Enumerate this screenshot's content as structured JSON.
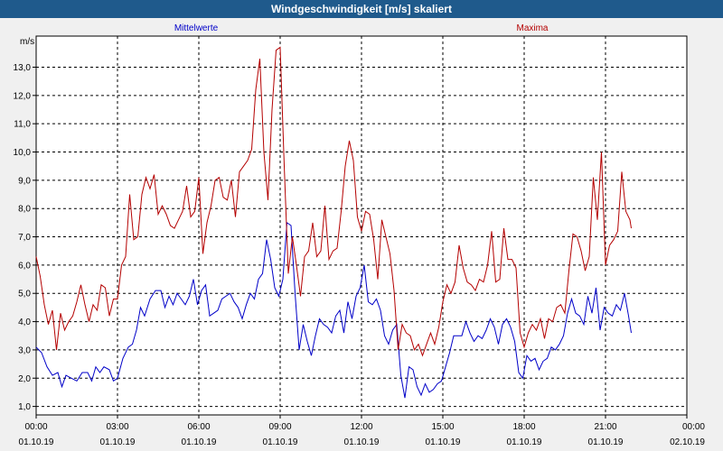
{
  "window": {
    "title": "Windgeschwindigkeit [m/s] skaliert"
  },
  "chart_data": {
    "type": "line",
    "ylabel": "m/s",
    "ylim": [
      0.7,
      14.1
    ],
    "yticks": [
      "1,0",
      "2,0",
      "3,0",
      "4,0",
      "5,0",
      "6,0",
      "7,0",
      "8,0",
      "9,0",
      "10,0",
      "11,0",
      "12,0",
      "13,0"
    ],
    "xlim": [
      0,
      24
    ],
    "xticks": [
      {
        "time": "00:00",
        "date": "01.10.19"
      },
      {
        "time": "03:00",
        "date": "01.10.19"
      },
      {
        "time": "06:00",
        "date": "01.10.19"
      },
      {
        "time": "09:00",
        "date": "01.10.19"
      },
      {
        "time": "12:00",
        "date": "01.10.19"
      },
      {
        "time": "15:00",
        "date": "01.10.19"
      },
      {
        "time": "18:00",
        "date": "01.10.19"
      },
      {
        "time": "21:00",
        "date": "01.10.19"
      },
      {
        "time": "00:00",
        "date": "02.10.19"
      }
    ],
    "grid": true,
    "legend": "top",
    "series": [
      {
        "name": "Mittelwerte",
        "color": "#0000c8",
        "points": [
          [
            0,
            3.1
          ],
          [
            0.2,
            2.9
          ],
          [
            0.4,
            2.4
          ],
          [
            0.6,
            2.1
          ],
          [
            0.8,
            2.2
          ],
          [
            0.95,
            1.7
          ],
          [
            1.1,
            2.1
          ],
          [
            1.3,
            2.0
          ],
          [
            1.5,
            1.9
          ],
          [
            1.7,
            2.2
          ],
          [
            1.9,
            2.2
          ],
          [
            2.05,
            1.9
          ],
          [
            2.2,
            2.4
          ],
          [
            2.35,
            2.2
          ],
          [
            2.5,
            2.4
          ],
          [
            2.7,
            2.3
          ],
          [
            2.85,
            1.9
          ],
          [
            3.0,
            2.0
          ],
          [
            3.2,
            2.7
          ],
          [
            3.4,
            3.1
          ],
          [
            3.55,
            3.2
          ],
          [
            3.7,
            3.7
          ],
          [
            3.85,
            4.5
          ],
          [
            4.0,
            4.2
          ],
          [
            4.2,
            4.8
          ],
          [
            4.4,
            5.1
          ],
          [
            4.6,
            5.1
          ],
          [
            4.75,
            4.5
          ],
          [
            4.9,
            4.9
          ],
          [
            5.05,
            4.6
          ],
          [
            5.2,
            5.0
          ],
          [
            5.35,
            4.8
          ],
          [
            5.5,
            4.6
          ],
          [
            5.65,
            4.9
          ],
          [
            5.8,
            5.5
          ],
          [
            5.95,
            4.6
          ],
          [
            6.1,
            5.1
          ],
          [
            6.25,
            5.3
          ],
          [
            6.4,
            4.2
          ],
          [
            6.55,
            4.3
          ],
          [
            6.7,
            4.4
          ],
          [
            6.85,
            4.8
          ],
          [
            7.0,
            4.9
          ],
          [
            7.15,
            5.0
          ],
          [
            7.3,
            4.7
          ],
          [
            7.45,
            4.5
          ],
          [
            7.6,
            4.1
          ],
          [
            7.75,
            4.6
          ],
          [
            7.9,
            5.0
          ],
          [
            8.05,
            4.8
          ],
          [
            8.2,
            5.5
          ],
          [
            8.35,
            5.7
          ],
          [
            8.5,
            6.9
          ],
          [
            8.65,
            6.2
          ],
          [
            8.8,
            5.2
          ],
          [
            8.95,
            4.9
          ],
          [
            9.1,
            5.5
          ],
          [
            9.25,
            7.5
          ],
          [
            9.4,
            7.4
          ],
          [
            9.55,
            5.0
          ],
          [
            9.7,
            3.0
          ],
          [
            9.85,
            3.9
          ],
          [
            10.0,
            3.3
          ],
          [
            10.15,
            2.8
          ],
          [
            10.3,
            3.5
          ],
          [
            10.45,
            4.1
          ],
          [
            10.6,
            3.9
          ],
          [
            10.75,
            3.8
          ],
          [
            10.9,
            3.6
          ],
          [
            11.05,
            4.2
          ],
          [
            11.2,
            4.4
          ],
          [
            11.35,
            3.6
          ],
          [
            11.5,
            4.7
          ],
          [
            11.65,
            4.1
          ],
          [
            11.8,
            4.9
          ],
          [
            11.95,
            5.2
          ],
          [
            12.1,
            6.0
          ],
          [
            12.25,
            4.7
          ],
          [
            12.4,
            4.6
          ],
          [
            12.55,
            4.8
          ],
          [
            12.7,
            4.4
          ],
          [
            12.85,
            3.5
          ],
          [
            13.0,
            3.2
          ],
          [
            13.15,
            3.7
          ],
          [
            13.3,
            3.9
          ],
          [
            13.45,
            2.1
          ],
          [
            13.6,
            1.3
          ],
          [
            13.75,
            2.4
          ],
          [
            13.9,
            2.3
          ],
          [
            14.05,
            1.7
          ],
          [
            14.2,
            1.4
          ],
          [
            14.35,
            1.8
          ],
          [
            14.5,
            1.5
          ],
          [
            14.65,
            1.6
          ],
          [
            14.8,
            1.8
          ],
          [
            14.95,
            1.9
          ],
          [
            15.1,
            2.4
          ],
          [
            15.25,
            2.9
          ],
          [
            15.4,
            3.5
          ],
          [
            15.55,
            3.5
          ],
          [
            15.7,
            3.5
          ],
          [
            15.85,
            4.0
          ],
          [
            16.0,
            3.6
          ],
          [
            16.15,
            3.3
          ],
          [
            16.3,
            3.5
          ],
          [
            16.45,
            3.4
          ],
          [
            16.6,
            3.7
          ],
          [
            16.75,
            4.1
          ],
          [
            16.9,
            3.8
          ],
          [
            17.05,
            3.2
          ],
          [
            17.2,
            3.9
          ],
          [
            17.35,
            4.1
          ],
          [
            17.5,
            3.8
          ],
          [
            17.65,
            3.3
          ],
          [
            17.8,
            2.2
          ],
          [
            17.95,
            2.0
          ],
          [
            18.1,
            2.8
          ],
          [
            18.25,
            2.6
          ],
          [
            18.4,
            2.7
          ],
          [
            18.55,
            2.3
          ],
          [
            18.7,
            2.6
          ],
          [
            18.85,
            2.7
          ],
          [
            19.0,
            3.1
          ],
          [
            19.15,
            3.0
          ],
          [
            19.3,
            3.2
          ],
          [
            19.45,
            3.5
          ],
          [
            19.6,
            4.3
          ],
          [
            19.75,
            4.8
          ],
          [
            19.9,
            4.3
          ],
          [
            20.05,
            4.2
          ],
          [
            20.2,
            3.9
          ],
          [
            20.35,
            4.9
          ],
          [
            20.5,
            4.3
          ],
          [
            20.65,
            5.2
          ],
          [
            20.8,
            3.7
          ],
          [
            20.95,
            4.5
          ],
          [
            21.1,
            4.3
          ],
          [
            21.25,
            4.2
          ],
          [
            21.4,
            4.6
          ],
          [
            21.55,
            4.4
          ],
          [
            21.7,
            5.0
          ],
          [
            21.85,
            4.2
          ],
          [
            21.95,
            3.6
          ]
        ]
      },
      {
        "name": "Maxima",
        "color": "#b40000",
        "points": [
          [
            0,
            6.3
          ],
          [
            0.15,
            5.6
          ],
          [
            0.3,
            4.6
          ],
          [
            0.45,
            3.9
          ],
          [
            0.6,
            4.4
          ],
          [
            0.75,
            3.0
          ],
          [
            0.9,
            4.3
          ],
          [
            1.05,
            3.7
          ],
          [
            1.2,
            4.0
          ],
          [
            1.35,
            4.2
          ],
          [
            1.5,
            4.7
          ],
          [
            1.65,
            5.3
          ],
          [
            1.8,
            4.6
          ],
          [
            1.95,
            4.0
          ],
          [
            2.1,
            4.6
          ],
          [
            2.25,
            4.4
          ],
          [
            2.4,
            5.3
          ],
          [
            2.55,
            5.2
          ],
          [
            2.7,
            4.2
          ],
          [
            2.85,
            4.8
          ],
          [
            3.0,
            4.8
          ],
          [
            3.15,
            6.0
          ],
          [
            3.3,
            6.3
          ],
          [
            3.45,
            8.5
          ],
          [
            3.6,
            6.9
          ],
          [
            3.75,
            7.0
          ],
          [
            3.9,
            8.5
          ],
          [
            4.05,
            9.1
          ],
          [
            4.2,
            8.7
          ],
          [
            4.35,
            9.2
          ],
          [
            4.5,
            7.8
          ],
          [
            4.65,
            8.1
          ],
          [
            4.8,
            7.8
          ],
          [
            4.95,
            7.4
          ],
          [
            5.1,
            7.3
          ],
          [
            5.25,
            7.6
          ],
          [
            5.4,
            7.9
          ],
          [
            5.55,
            8.8
          ],
          [
            5.7,
            7.7
          ],
          [
            5.85,
            7.9
          ],
          [
            6.0,
            9.1
          ],
          [
            6.15,
            6.4
          ],
          [
            6.3,
            7.5
          ],
          [
            6.45,
            8.1
          ],
          [
            6.6,
            9.0
          ],
          [
            6.75,
            9.1
          ],
          [
            6.9,
            8.4
          ],
          [
            7.05,
            8.3
          ],
          [
            7.2,
            9.0
          ],
          [
            7.35,
            7.7
          ],
          [
            7.5,
            9.3
          ],
          [
            7.65,
            9.5
          ],
          [
            7.8,
            9.7
          ],
          [
            7.95,
            10.1
          ],
          [
            8.1,
            12.2
          ],
          [
            8.25,
            13.3
          ],
          [
            8.4,
            10.0
          ],
          [
            8.55,
            8.3
          ],
          [
            8.7,
            11.5
          ],
          [
            8.85,
            13.6
          ],
          [
            9.0,
            13.7
          ],
          [
            9.15,
            9.5
          ],
          [
            9.3,
            5.7
          ],
          [
            9.45,
            7.0
          ],
          [
            9.6,
            6.0
          ],
          [
            9.75,
            4.9
          ],
          [
            9.9,
            6.3
          ],
          [
            10.05,
            6.5
          ],
          [
            10.2,
            7.5
          ],
          [
            10.35,
            6.3
          ],
          [
            10.5,
            6.5
          ],
          [
            10.65,
            8.1
          ],
          [
            10.8,
            6.2
          ],
          [
            10.95,
            6.5
          ],
          [
            11.1,
            6.6
          ],
          [
            11.25,
            7.9
          ],
          [
            11.4,
            9.5
          ],
          [
            11.55,
            10.4
          ],
          [
            11.7,
            9.7
          ],
          [
            11.85,
            7.7
          ],
          [
            12.0,
            7.2
          ],
          [
            12.15,
            7.9
          ],
          [
            12.3,
            7.8
          ],
          [
            12.45,
            6.9
          ],
          [
            12.6,
            5.5
          ],
          [
            12.75,
            7.6
          ],
          [
            12.9,
            7.0
          ],
          [
            13.05,
            6.4
          ],
          [
            13.2,
            5.1
          ],
          [
            13.35,
            3.0
          ],
          [
            13.5,
            3.9
          ],
          [
            13.65,
            3.6
          ],
          [
            13.8,
            3.5
          ],
          [
            13.95,
            3.0
          ],
          [
            14.1,
            3.2
          ],
          [
            14.25,
            2.8
          ],
          [
            14.4,
            3.2
          ],
          [
            14.55,
            3.6
          ],
          [
            14.7,
            3.2
          ],
          [
            14.85,
            3.8
          ],
          [
            15.0,
            4.7
          ],
          [
            15.15,
            5.3
          ],
          [
            15.3,
            5.0
          ],
          [
            15.45,
            5.4
          ],
          [
            15.6,
            6.7
          ],
          [
            15.75,
            5.9
          ],
          [
            15.9,
            5.4
          ],
          [
            16.05,
            5.3
          ],
          [
            16.2,
            5.1
          ],
          [
            16.35,
            5.5
          ],
          [
            16.5,
            5.4
          ],
          [
            16.65,
            6.0
          ],
          [
            16.8,
            7.2
          ],
          [
            16.95,
            5.4
          ],
          [
            17.1,
            5.5
          ],
          [
            17.25,
            7.3
          ],
          [
            17.4,
            6.2
          ],
          [
            17.55,
            6.2
          ],
          [
            17.7,
            5.9
          ],
          [
            17.85,
            3.6
          ],
          [
            18.0,
            3.1
          ],
          [
            18.15,
            3.6
          ],
          [
            18.3,
            3.9
          ],
          [
            18.45,
            3.7
          ],
          [
            18.6,
            4.1
          ],
          [
            18.75,
            3.4
          ],
          [
            18.9,
            4.1
          ],
          [
            19.05,
            4.0
          ],
          [
            19.2,
            4.5
          ],
          [
            19.35,
            4.6
          ],
          [
            19.5,
            4.3
          ],
          [
            19.65,
            5.8
          ],
          [
            19.8,
            7.1
          ],
          [
            19.95,
            7.0
          ],
          [
            20.1,
            6.5
          ],
          [
            20.25,
            5.8
          ],
          [
            20.4,
            6.3
          ],
          [
            20.55,
            9.1
          ],
          [
            20.7,
            7.6
          ],
          [
            20.85,
            10.0
          ],
          [
            21.0,
            6.0
          ],
          [
            21.15,
            6.7
          ],
          [
            21.3,
            6.9
          ],
          [
            21.45,
            7.2
          ],
          [
            21.6,
            9.3
          ],
          [
            21.75,
            7.9
          ],
          [
            21.9,
            7.6
          ],
          [
            21.95,
            7.3
          ]
        ]
      }
    ]
  }
}
